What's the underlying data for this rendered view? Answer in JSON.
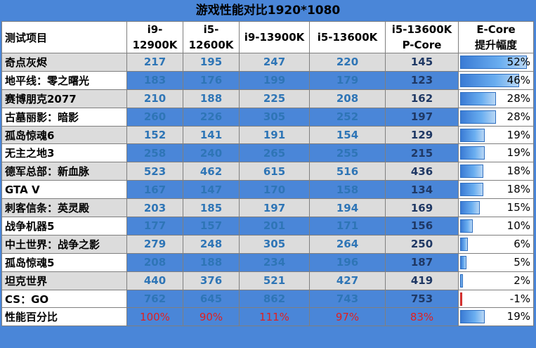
{
  "title": "游戏性能对比1920*1080",
  "chart_data": {
    "type": "table",
    "columns": [
      "测试项目",
      "i9-12900K",
      "i5-12600K",
      "i9-13900K",
      "i5-13600K",
      "i5-13600K\nP-Core",
      "E-Core\n提升幅度"
    ],
    "header": {
      "label": "测试项目",
      "c1": "i9-12900K",
      "c2": "i5-12600K",
      "c3": "i9-13900K",
      "c4": "i5-13600K",
      "c5a": "i5-13600K",
      "c5b": "P-Core",
      "c6a": "E-Core",
      "c6b": "提升幅度"
    },
    "rows": [
      {
        "name": "奇点灰烬",
        "v": [
          "217",
          "195",
          "247",
          "220",
          "145"
        ],
        "ecore": "52%",
        "ecore_value": 52
      },
      {
        "name": "地平线：零之曙光",
        "v": [
          "183",
          "176",
          "199",
          "179",
          "123"
        ],
        "ecore": "46%",
        "ecore_value": 46
      },
      {
        "name": "赛博朋克2077",
        "v": [
          "210",
          "188",
          "225",
          "208",
          "162"
        ],
        "ecore": "28%",
        "ecore_value": 28
      },
      {
        "name": "古墓丽影：暗影",
        "v": [
          "260",
          "226",
          "305",
          "252",
          "197"
        ],
        "ecore": "28%",
        "ecore_value": 28
      },
      {
        "name": "孤岛惊魂6",
        "v": [
          "152",
          "141",
          "191",
          "154",
          "129"
        ],
        "ecore": "19%",
        "ecore_value": 19
      },
      {
        "name": "无主之地3",
        "v": [
          "258",
          "240",
          "265",
          "255",
          "215"
        ],
        "ecore": "19%",
        "ecore_value": 19
      },
      {
        "name": "德军总部：新血脉",
        "v": [
          "523",
          "462",
          "615",
          "516",
          "436"
        ],
        "ecore": "18%",
        "ecore_value": 18
      },
      {
        "name": "GTA V",
        "v": [
          "167",
          "147",
          "170",
          "158",
          "134"
        ],
        "ecore": "18%",
        "ecore_value": 18
      },
      {
        "name": "刺客信条：英灵殿",
        "v": [
          "203",
          "185",
          "197",
          "194",
          "169"
        ],
        "ecore": "15%",
        "ecore_value": 15
      },
      {
        "name": "战争机器5",
        "v": [
          "177",
          "157",
          "201",
          "171",
          "156"
        ],
        "ecore": "10%",
        "ecore_value": 10
      },
      {
        "name": "中土世界：战争之影",
        "v": [
          "279",
          "248",
          "305",
          "264",
          "250"
        ],
        "ecore": "6%",
        "ecore_value": 6
      },
      {
        "name": "孤岛惊魂5",
        "v": [
          "208",
          "188",
          "234",
          "196",
          "187"
        ],
        "ecore": "5%",
        "ecore_value": 5
      },
      {
        "name": "坦克世界",
        "v": [
          "440",
          "376",
          "521",
          "427",
          "419"
        ],
        "ecore": "2%",
        "ecore_value": 2
      },
      {
        "name": "CS：GO",
        "v": [
          "762",
          "645",
          "862",
          "743",
          "753"
        ],
        "ecore": "-1%",
        "ecore_value": -1
      }
    ],
    "summary": {
      "name": "性能百分比",
      "v": [
        "100%",
        "90%",
        "111%",
        "97%",
        "83%"
      ],
      "ecore": "19%",
      "ecore_value": 19
    },
    "bar_max": 55
  }
}
